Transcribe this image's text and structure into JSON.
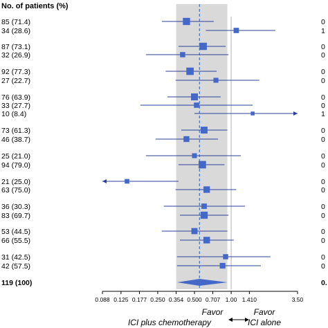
{
  "chart_data": {
    "type": "forest",
    "column_header": "No. of patients (%)",
    "x_scale": "log",
    "xlim": [
      0.088,
      3.5
    ],
    "x_ticks": [
      "0.088",
      "0.125",
      "0.177",
      "0.250",
      "0.354",
      "0.500",
      "0.707",
      "1.00",
      "1.410",
      "3.50"
    ],
    "x_tick_values": [
      0.088,
      0.125,
      0.177,
      0.25,
      0.354,
      0.5,
      0.707,
      1.0,
      1.41,
      3.5
    ],
    "reference_line": 1.0,
    "overall_line": 0.55,
    "shaded_band": [
      0.354,
      0.93
    ],
    "favor_left": [
      "Favor",
      "ICI plus chemotherapy"
    ],
    "favor_right": [
      "Favor",
      "ICI alone"
    ],
    "colors": {
      "marker": "#4468c8",
      "line": "#2a3f9c",
      "band": "#d9d9d9",
      "overall_line": "#3c78c8"
    },
    "rows": [
      {
        "label": "85 (71.4)",
        "hr": 0.43,
        "lo": 0.27,
        "hi": 0.72,
        "weight": 0.85,
        "right": "0"
      },
      {
        "label": "34 (28.6)",
        "hr": 1.1,
        "lo": 0.62,
        "hi": 2.3,
        "weight": 0.34,
        "right": "1"
      },
      {
        "label": "87 (73.1)",
        "hr": 0.59,
        "lo": 0.37,
        "hi": 0.9,
        "weight": 0.87,
        "right": "0"
      },
      {
        "label": "32 (26.9)",
        "hr": 0.4,
        "lo": 0.2,
        "hi": 0.95,
        "weight": 0.32,
        "right": "0"
      },
      {
        "label": "92 (77.3)",
        "hr": 0.46,
        "lo": 0.29,
        "hi": 0.76,
        "weight": 0.92,
        "right": "0"
      },
      {
        "label": "27 (22.7)",
        "hr": 0.75,
        "lo": 0.35,
        "hi": 1.7,
        "weight": 0.27,
        "right": "0"
      },
      {
        "label": "76 (63.9)",
        "hr": 0.5,
        "lo": 0.3,
        "hi": 0.82,
        "weight": 0.76,
        "right": "0"
      },
      {
        "label": "33 (27.7)",
        "hr": 0.52,
        "lo": 0.18,
        "hi": 1.5,
        "weight": 0.33,
        "right": "0"
      },
      {
        "label": "10 (8.4)",
        "hr": 1.5,
        "lo": 0.5,
        "hi": 3.5,
        "weight": 0.1,
        "right": "1",
        "arrow_right": true
      },
      {
        "label": "73 (61.3)",
        "hr": 0.6,
        "lo": 0.39,
        "hi": 0.93,
        "weight": 0.73,
        "right": "0"
      },
      {
        "label": "46 (38.7)",
        "hr": 0.43,
        "lo": 0.24,
        "hi": 0.78,
        "weight": 0.46,
        "right": "0"
      },
      {
        "label": "25 (21.0)",
        "hr": 0.5,
        "lo": 0.2,
        "hi": 1.2,
        "weight": 0.25,
        "right": "0"
      },
      {
        "label": "94 (79.0)",
        "hr": 0.58,
        "lo": 0.37,
        "hi": 0.88,
        "weight": 0.94,
        "right": "0"
      },
      {
        "label": "21 (25.0)",
        "hr": 0.14,
        "lo": 0.088,
        "hi": 0.37,
        "weight": 0.21,
        "right": "0",
        "arrow_left": true
      },
      {
        "label": "63 (75.0)",
        "hr": 0.63,
        "lo": 0.35,
        "hi": 1.1,
        "weight": 0.63,
        "right": "0"
      },
      {
        "label": "36 (30.3)",
        "hr": 0.6,
        "lo": 0.28,
        "hi": 1.3,
        "weight": 0.36,
        "right": "0"
      },
      {
        "label": "83 (69.7)",
        "hr": 0.6,
        "lo": 0.38,
        "hi": 0.95,
        "weight": 0.83,
        "right": "0"
      },
      {
        "label": "53 (44.5)",
        "hr": 0.5,
        "lo": 0.27,
        "hi": 0.93,
        "weight": 0.53,
        "right": "0"
      },
      {
        "label": "66 (55.5)",
        "hr": 0.63,
        "lo": 0.38,
        "hi": 1.05,
        "weight": 0.66,
        "right": "0"
      },
      {
        "label": "31 (42.5)",
        "hr": 0.9,
        "lo": 0.36,
        "hi": 2.1,
        "weight": 0.31,
        "right": "0"
      },
      {
        "label": "42 (57.5)",
        "hr": 0.85,
        "lo": 0.36,
        "hi": 1.75,
        "weight": 0.42,
        "right": "0"
      }
    ],
    "overall": {
      "label": "119 (100)",
      "hr": 0.55,
      "lo": 0.36,
      "hi": 0.93,
      "right": "0."
    }
  }
}
